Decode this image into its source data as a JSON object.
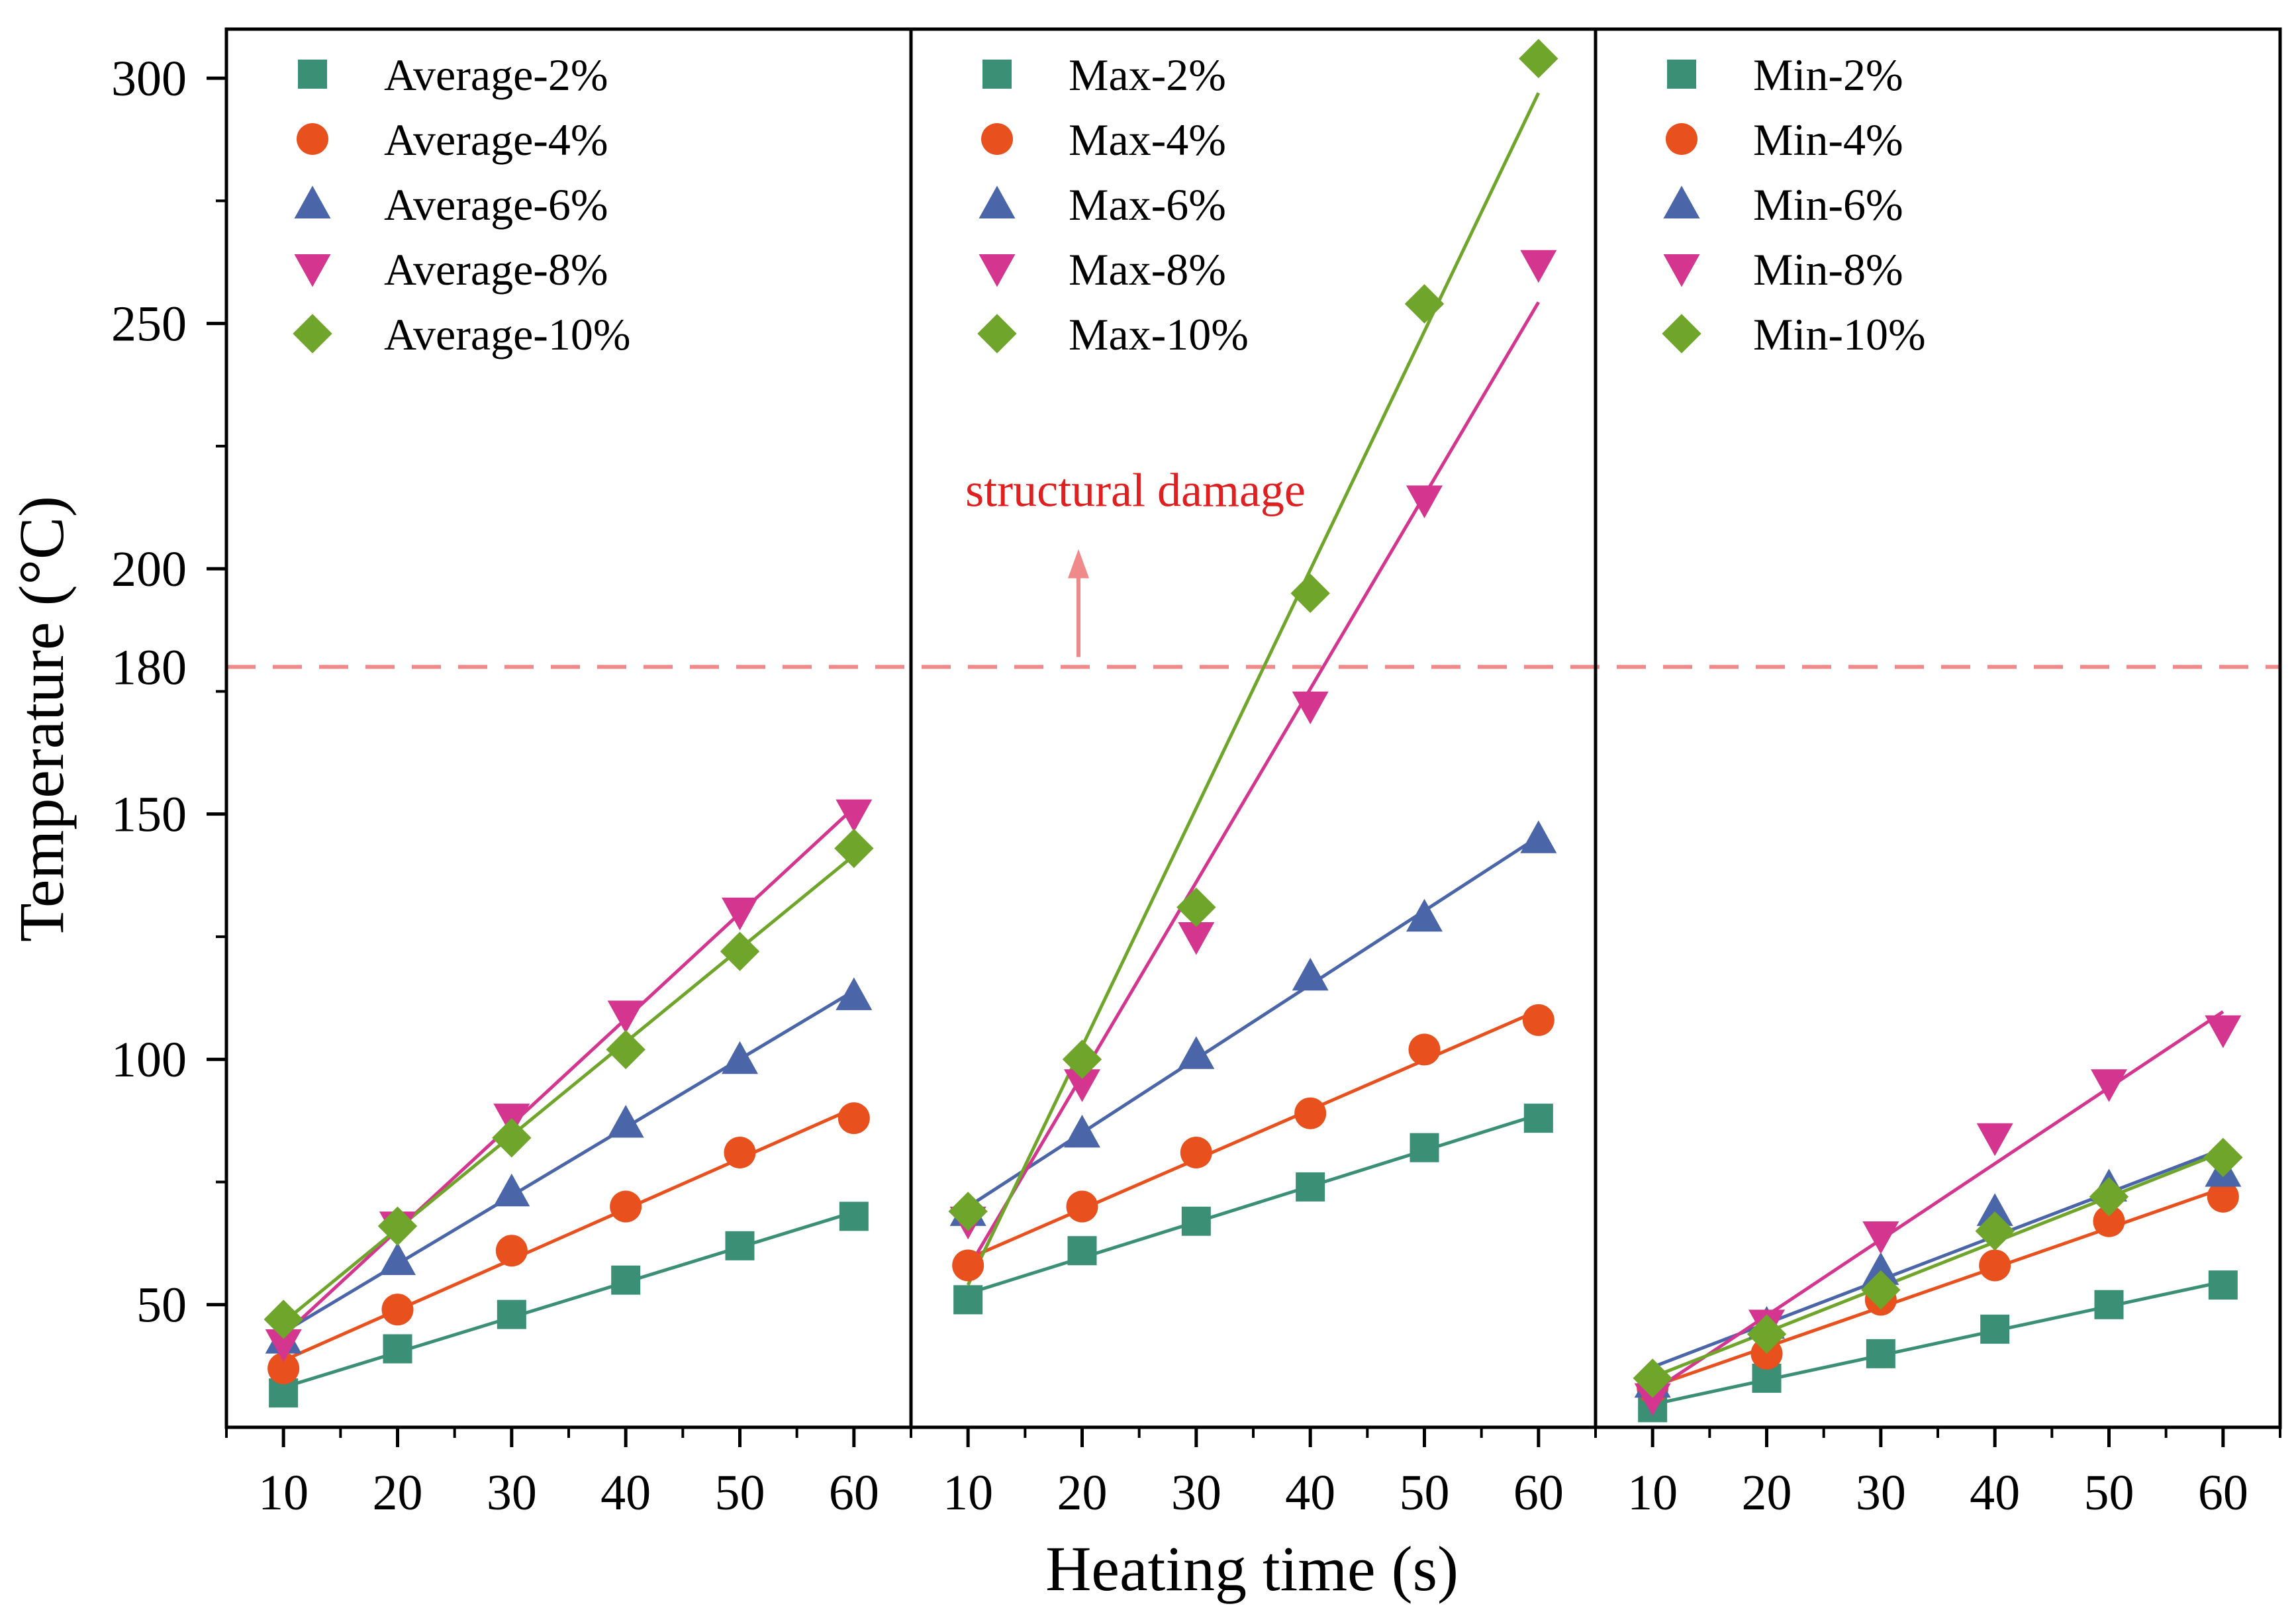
{
  "chart_data": {
    "type": "scatter",
    "xlabel": "Heating time (s)",
    "ylabel": "Temperature (°C)",
    "x": [
      10,
      20,
      30,
      40,
      50,
      60
    ],
    "xticks": [
      "10",
      "20",
      "30",
      "40",
      "50",
      "60"
    ],
    "xlim": [
      5,
      65
    ],
    "yticks": [
      "50",
      "100",
      "150",
      "200",
      "250",
      "300"
    ],
    "ylim": [
      25,
      310
    ],
    "legend_position": "top-left of each panel",
    "colors": {
      "2%": "#3a8f74",
      "4%": "#e8501e",
      "6%": "#4a65a8",
      "8%": "#d4358e",
      "10%": "#6fa52b"
    },
    "markers": {
      "2%": "square",
      "4%": "circle",
      "6%": "triangle-up",
      "8%": "triangle-down",
      "10%": "diamond"
    },
    "panels": [
      {
        "name": "Average",
        "series": [
          {
            "name": "Average-2%",
            "key": "2%",
            "values": [
              32,
              41,
              48,
              55,
              62,
              68
            ]
          },
          {
            "name": "Average-4%",
            "key": "4%",
            "values": [
              37,
              49,
              61,
              70,
              81,
              88
            ]
          },
          {
            "name": "Average-6%",
            "key": "6%",
            "values": [
              43,
              59,
              73,
              87,
              100,
              113
            ]
          },
          {
            "name": "Average-8%",
            "key": "8%",
            "values": [
              42,
              66,
              88,
              109,
              130,
              150
            ]
          },
          {
            "name": "Average-10%",
            "key": "10%",
            "values": [
              47,
              66,
              84,
              102,
              122,
              143
            ]
          }
        ]
      },
      {
        "name": "Max",
        "series": [
          {
            "name": "Max-2%",
            "key": "2%",
            "values": [
              51,
              61,
              67,
              74,
              82,
              88
            ]
          },
          {
            "name": "Max-4%",
            "key": "4%",
            "values": [
              58,
              70,
              81,
              89,
              102,
              108
            ]
          },
          {
            "name": "Max-6%",
            "key": "6%",
            "values": [
              69,
              85,
              101,
              117,
              129,
              145
            ]
          },
          {
            "name": "Max-8%",
            "key": "8%",
            "values": [
              67,
              95,
              125,
              172,
              214,
              262
            ]
          },
          {
            "name": "Max-10%",
            "key": "10%",
            "values": [
              69,
              100,
              131,
              195,
              254,
              304
            ]
          }
        ]
      },
      {
        "name": "Min",
        "series": [
          {
            "name": "Min-2%",
            "key": "2%",
            "values": [
              29,
              35,
              40,
              45,
              50,
              54
            ]
          },
          {
            "name": "Min-4%",
            "key": "4%",
            "values": [
              33,
              40,
              51,
              58,
              67,
              72
            ]
          },
          {
            "name": "Min-6%",
            "key": "6%",
            "values": [
              34,
              46,
              57,
              69,
              74,
              77
            ]
          },
          {
            "name": "Min-8%",
            "key": "8%",
            "values": [
              31,
              46,
              64,
              84,
              95,
              106
            ]
          },
          {
            "name": "Min-10%",
            "key": "10%",
            "values": [
              35,
              44,
              53,
              65,
              72,
              80
            ]
          }
        ]
      }
    ],
    "reference_line": {
      "y": 180,
      "label": "180",
      "color": "#f08a8a",
      "label_color": "#e02020"
    },
    "annotation": {
      "text": "structural damage",
      "color": "#e02020",
      "arrow_color": "#f08a8a",
      "panel": 1
    }
  }
}
